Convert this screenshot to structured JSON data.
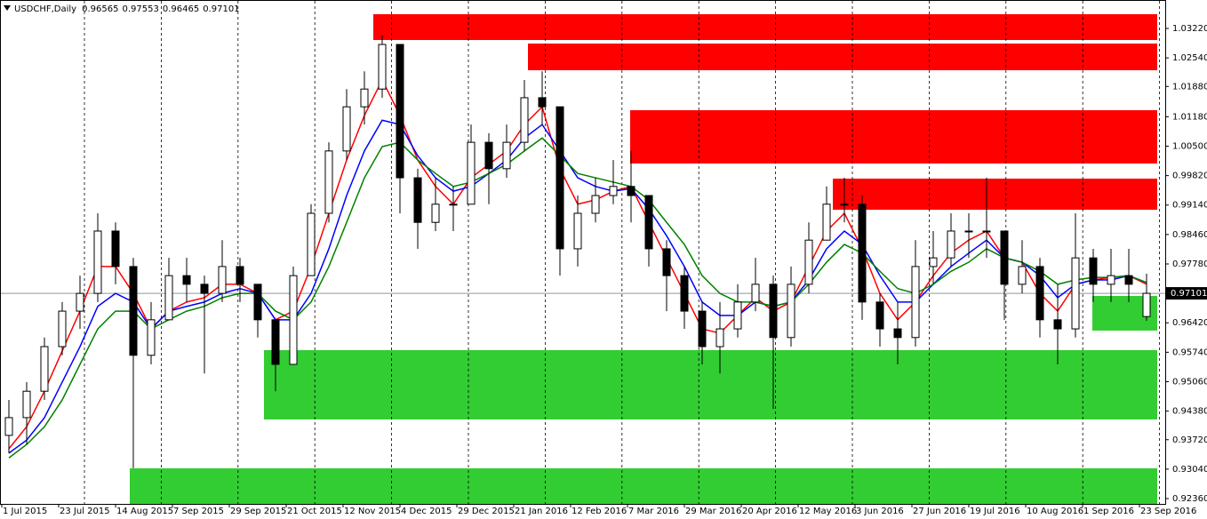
{
  "chart_data": {
    "type": "candlestick",
    "symbol": "USDCHF,Daily",
    "open": [
      0.9382,
      0.9423,
      0.9484,
      0.9587,
      0.9669,
      0.971,
      0.9854,
      0.9772,
      0.9567,
      0.9649,
      0.9751,
      0.9731,
      0.971,
      0.9772,
      0.9731,
      0.9649,
      0.9546,
      0.9751,
      0.9895,
      1.0039,
      1.0141,
      1.0182,
      1.0285,
      0.9977,
      0.9874,
      0.9916,
      0.9916,
      1.0059,
      0.9998,
      1.0059,
      1.0162,
      1.0141,
      0.9813,
      0.9895,
      0.9936,
      0.9957,
      0.9936,
      0.9813,
      0.9751,
      0.9669,
      0.9587,
      0.9628,
      0.969,
      0.9731,
      0.9608,
      0.9731,
      0.9833,
      0.9916,
      0.9916,
      0.969,
      0.9628,
      0.9608,
      0.9772,
      0.9792,
      0.9854,
      0.9854,
      0.9854,
      0.9731,
      0.9772,
      0.9649,
      0.9628,
      0.9792,
      0.9731,
      0.9751,
      0.96565
    ],
    "high": [
      0.9464,
      0.9505,
      0.9608,
      0.969,
      0.9751,
      0.9895,
      0.9874,
      0.9792,
      0.969,
      0.9792,
      0.9792,
      0.9751,
      0.9833,
      0.9792,
      0.9731,
      0.9649,
      0.9772,
      0.9916,
      1.0059,
      1.0182,
      1.0223,
      1.0306,
      1.0285,
      0.9998,
      0.9977,
      0.9957,
      1.01,
      1.008,
      1.01,
      1.0203,
      1.0223,
      1.0141,
      0.9936,
      0.9977,
      1.0018,
      1.0039,
      0.9936,
      0.9833,
      0.9772,
      0.969,
      0.969,
      0.9731,
      0.9792,
      0.9751,
      0.9772,
      0.9874,
      0.9957,
      0.9977,
      0.9936,
      0.971,
      0.969,
      0.9833,
      0.9854,
      0.9895,
      0.9895,
      0.9977,
      0.9854,
      0.9833,
      0.9792,
      0.9731,
      0.9895,
      0.9813,
      0.9813,
      0.9813,
      0.97553
    ],
    "low": [
      0.9341,
      0.9361,
      0.9464,
      0.9567,
      0.9628,
      0.969,
      0.9731,
      0.9306,
      0.9546,
      0.9649,
      0.969,
      0.9525,
      0.969,
      0.969,
      0.9608,
      0.9484,
      0.9546,
      0.9751,
      0.9874,
      1.0018,
      1.01,
      1.0162,
      0.9895,
      0.9813,
      0.9854,
      0.9854,
      0.9916,
      0.9916,
      0.9977,
      1.0039,
      1.01,
      0.9751,
      0.9772,
      0.9874,
      0.9916,
      0.9874,
      0.9772,
      0.9669,
      0.9628,
      0.9546,
      0.9525,
      0.9608,
      0.9669,
      0.9443,
      0.9587,
      0.971,
      0.9833,
      0.9874,
      0.9649,
      0.9587,
      0.9546,
      0.9587,
      0.9731,
      0.9772,
      0.9792,
      0.9792,
      0.9649,
      0.971,
      0.9608,
      0.9546,
      0.9608,
      0.969,
      0.969,
      0.969,
      0.96465
    ],
    "close": [
      0.9423,
      0.9484,
      0.9587,
      0.9669,
      0.971,
      0.9854,
      0.9772,
      0.9567,
      0.9649,
      0.9751,
      0.9731,
      0.971,
      0.9772,
      0.9731,
      0.9649,
      0.9546,
      0.9751,
      0.9895,
      1.0039,
      1.0141,
      1.0182,
      1.0285,
      0.9977,
      0.9874,
      0.9916,
      0.9916,
      1.0059,
      0.9998,
      1.0059,
      1.0162,
      1.0141,
      0.9813,
      0.9895,
      0.9936,
      0.9957,
      0.9936,
      0.9813,
      0.9751,
      0.9669,
      0.9587,
      0.9628,
      0.969,
      0.9731,
      0.9608,
      0.9731,
      0.9833,
      0.9916,
      0.9916,
      0.969,
      0.9628,
      0.9608,
      0.9772,
      0.9792,
      0.9854,
      0.9854,
      0.9854,
      0.9731,
      0.9772,
      0.9649,
      0.9628,
      0.9792,
      0.9731,
      0.9751,
      0.9731,
      0.97101
    ],
    "series": [
      {
        "color": "#ff0000",
        "values": [
          0.9351,
          0.9402,
          0.9484,
          0.9577,
          0.9669,
          0.9772,
          0.9772,
          0.971,
          0.9628,
          0.9669,
          0.969,
          0.97,
          0.9731,
          0.9731,
          0.971,
          0.9649,
          0.9669,
          0.9772,
          0.9895,
          1.0018,
          1.0121,
          1.0203,
          1.0121,
          1.0018,
          0.9957,
          0.9916,
          0.9977,
          1.0008,
          1.0039,
          1.01,
          1.0141,
          0.9998,
          0.9916,
          0.9926,
          0.9946,
          0.9957,
          0.9874,
          0.9792,
          0.971,
          0.9628,
          0.9618,
          0.9659,
          0.97,
          0.9669,
          0.969,
          0.9772,
          0.9854,
          0.9895,
          0.9813,
          0.971,
          0.9649,
          0.969,
          0.9751,
          0.9803,
          0.9833,
          0.9854,
          0.9792,
          0.9782,
          0.971,
          0.9669,
          0.9731,
          0.9741,
          0.9747,
          0.9751,
          0.9731
        ]
      },
      {
        "color": "#0000ff",
        "values": [
          0.9341,
          0.9371,
          0.9423,
          0.9505,
          0.9587,
          0.968,
          0.971,
          0.969,
          0.9628,
          0.9669,
          0.968,
          0.969,
          0.971,
          0.9721,
          0.971,
          0.9649,
          0.9649,
          0.971,
          0.9813,
          0.9936,
          1.0039,
          1.011,
          1.01,
          1.0028,
          0.9977,
          0.9946,
          0.9957,
          0.9987,
          1.0018,
          1.0069,
          1.01,
          1.0039,
          0.9977,
          0.9957,
          0.9946,
          0.9952,
          0.9905,
          0.9843,
          0.9772,
          0.969,
          0.9659,
          0.9659,
          0.969,
          0.968,
          0.969,
          0.9741,
          0.9813,
          0.9854,
          0.9823,
          0.9751,
          0.969,
          0.969,
          0.9731,
          0.9772,
          0.9803,
          0.9833,
          0.9792,
          0.9782,
          0.9751,
          0.97,
          0.9731,
          0.9741,
          0.9741,
          0.9751,
          0.9735
        ]
      },
      {
        "color": "#008000",
        "values": [
          0.933,
          0.9361,
          0.9402,
          0.9464,
          0.9546,
          0.9628,
          0.9669,
          0.9669,
          0.9628,
          0.9649,
          0.9669,
          0.968,
          0.97,
          0.971,
          0.971,
          0.9669,
          0.9649,
          0.969,
          0.9772,
          0.9874,
          0.9977,
          1.0049,
          1.0059,
          1.0018,
          0.9987,
          0.9957,
          0.9967,
          0.9987,
          1.0008,
          1.0039,
          1.0069,
          1.0028,
          0.9987,
          0.9977,
          0.9967,
          0.9957,
          0.9926,
          0.9874,
          0.9823,
          0.9751,
          0.971,
          0.969,
          0.969,
          0.968,
          0.969,
          0.9731,
          0.9782,
          0.9823,
          0.9803,
          0.9761,
          0.9721,
          0.971,
          0.9731,
          0.9761,
          0.9782,
          0.9813,
          0.9792,
          0.9782,
          0.9761,
          0.9731,
          0.9741,
          0.9747,
          0.9747,
          0.9751,
          0.9735
        ]
      }
    ],
    "zones": [
      {
        "start": 21,
        "low": 1.02953,
        "high": 1.03549,
        "color": "#ff0000"
      },
      {
        "start": 29.7,
        "low": 1.02255,
        "high": 1.02871,
        "color": "#ff0000"
      },
      {
        "start": 35.45,
        "low": 1.001,
        "high": 1.01331,
        "color": "#ff0000"
      },
      {
        "start": 46.85,
        "low": 0.99032,
        "high": 0.99751,
        "color": "#ff0000"
      },
      {
        "start": 61.45,
        "low": 0.9624,
        "high": 0.97041,
        "color": "#32cd32"
      },
      {
        "start": 14.85,
        "low": 0.94188,
        "high": 0.95789,
        "color": "#32cd32"
      },
      {
        "start": 7.3,
        "low": 0.92237,
        "high": 0.93059,
        "color": "#32cd32"
      }
    ],
    "ylim": [
      0.92237,
      1.03877
    ],
    "yticks": [
      {
        "value": 1.0322,
        "label": "1.03220"
      },
      {
        "value": 1.0254,
        "label": "1.02540"
      },
      {
        "value": 1.0188,
        "label": "1.01880"
      },
      {
        "value": 1.0118,
        "label": "1.01180"
      },
      {
        "value": 1.005,
        "label": "1.00500"
      },
      {
        "value": 0.9982,
        "label": "0.99820"
      },
      {
        "value": 0.9914,
        "label": "0.99140"
      },
      {
        "value": 0.9846,
        "label": "0.98460"
      },
      {
        "value": 0.9778,
        "label": "0.97780"
      },
      {
        "value": 0.9642,
        "label": "0.96420"
      },
      {
        "value": 0.9574,
        "label": "0.95740"
      },
      {
        "value": 0.9506,
        "label": "0.95060"
      },
      {
        "value": 0.9438,
        "label": "0.94380"
      },
      {
        "value": 0.9372,
        "label": "0.93720"
      },
      {
        "value": 0.9304,
        "label": "0.93040"
      },
      {
        "value": 0.9236,
        "label": "0.92360"
      }
    ],
    "date_labels": [
      "1 Jul 2015",
      "23 Jul 2015",
      "14 Aug 2015",
      "7 Sep 2015",
      "29 Sep 2015",
      "21 Oct 2015",
      "12 Nov 2015",
      "4 Dec 2015",
      "29 Dec 2015",
      "21 Jan 2016",
      "12 Feb 2016",
      "7 Mar 2016",
      "29 Mar 2016",
      "20 Apr 2016",
      "12 May 2016",
      "3 Jun 2016",
      "27 Jun 2016",
      "19 Jul 2016",
      "10 Aug 2016",
      "1 Sep 2016",
      "23 Sep 2016"
    ]
  }
}
